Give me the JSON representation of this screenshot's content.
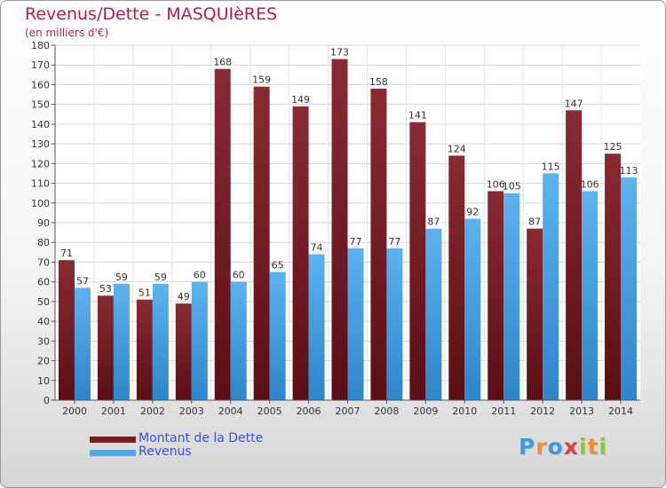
{
  "title": "Revenus/Dette - MASQUIèRES",
  "subtitle": "(en milliers d'€)",
  "legend": {
    "items": [
      {
        "label": "Montant de la Dette",
        "color": "#7a1c24"
      },
      {
        "label": "Revenus",
        "color": "#4fa6e6"
      }
    ]
  },
  "logo": {
    "letters": [
      "P",
      "r",
      "o",
      "x",
      "i",
      "t",
      "i"
    ],
    "colors": [
      "#3a9be0",
      "#f08c2a",
      "#3a9be0",
      "#e23b3b",
      "#8cc63f",
      "#f08c2a",
      "#8cc63f"
    ]
  },
  "chart_data": {
    "type": "bar",
    "title": "Revenus/Dette - MASQUIèRES",
    "subtitle": "(en milliers d'€)",
    "categories": [
      "2000",
      "2001",
      "2002",
      "2003",
      "2004",
      "2005",
      "2006",
      "2007",
      "2008",
      "2009",
      "2010",
      "2011",
      "2012",
      "2013",
      "2014"
    ],
    "series": [
      {
        "name": "Montant de la Dette",
        "color": "#7a1c24",
        "values": [
          71,
          53,
          51,
          49,
          168,
          159,
          149,
          173,
          158,
          141,
          124,
          106,
          87,
          147,
          125
        ]
      },
      {
        "name": "Revenus",
        "color": "#4fa6e6",
        "values": [
          57,
          59,
          59,
          60,
          60,
          65,
          74,
          77,
          77,
          87,
          92,
          105,
          115,
          106,
          113
        ]
      }
    ],
    "ylim": [
      0,
      180
    ],
    "yticks": [
      0,
      10,
      20,
      30,
      40,
      50,
      60,
      70,
      80,
      90,
      100,
      110,
      120,
      130,
      140,
      150,
      160,
      170,
      180
    ],
    "grid": true,
    "legend_position": "bottom-left"
  }
}
